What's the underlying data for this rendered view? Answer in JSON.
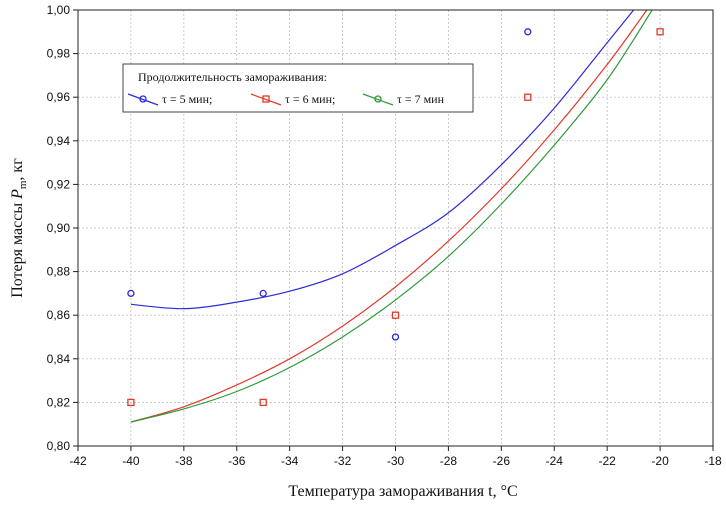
{
  "chart_data": {
    "type": "scatter",
    "xlabel": "Температура замораживания  t, °C",
    "ylabel_main": "Потеря массы ",
    "ylabel_var": "P",
    "ylabel_sub": "m",
    "ylabel_unit": ", кг",
    "xlim": [
      -42,
      -18
    ],
    "ylim": [
      0.8,
      1.0
    ],
    "xticks": [
      -42,
      -40,
      -38,
      -36,
      -34,
      -32,
      -30,
      -28,
      -26,
      -24,
      -22,
      -20,
      -18
    ],
    "yticks": [
      0.8,
      0.82,
      0.84,
      0.86,
      0.88,
      0.9,
      0.92,
      0.94,
      0.96,
      0.98,
      1.0
    ],
    "xtick_labels": [
      "-42",
      "-40",
      "-38",
      "-36",
      "-34",
      "-32",
      "-30",
      "-28",
      "-26",
      "-24",
      "-22",
      "-20",
      "-18"
    ],
    "ytick_labels": [
      "0,80",
      "0,82",
      "0,84",
      "0,86",
      "0,88",
      "0,90",
      "0,92",
      "0,94",
      "0,96",
      "0,98",
      "1,00"
    ],
    "grid": true,
    "legend": {
      "title": "Продолжительность замораживания:",
      "placement": "top-left"
    },
    "series": [
      {
        "name": "τ = 5 мин;",
        "color": "#2b2bd9",
        "marker": "circle",
        "points": [
          [
            -40,
            0.87
          ],
          [
            -35,
            0.87
          ],
          [
            -30,
            0.85
          ],
          [
            -25,
            0.99
          ]
        ],
        "fit_curve": [
          [
            -40,
            0.865
          ],
          [
            -38,
            0.863
          ],
          [
            -36,
            0.866
          ],
          [
            -34,
            0.871
          ],
          [
            -32,
            0.879
          ],
          [
            -30,
            0.892
          ],
          [
            -28,
            0.907
          ],
          [
            -26,
            0.929
          ],
          [
            -24,
            0.955
          ],
          [
            -22,
            0.985
          ],
          [
            -21,
            1.0
          ]
        ]
      },
      {
        "name": "τ = 6 мин;",
        "color": "#e03a2b",
        "marker": "square",
        "points": [
          [
            -40,
            0.82
          ],
          [
            -35,
            0.82
          ],
          [
            -30,
            0.86
          ],
          [
            -25,
            0.96
          ],
          [
            -20,
            0.99
          ]
        ],
        "fit_curve": [
          [
            -40,
            0.811
          ],
          [
            -38,
            0.818
          ],
          [
            -36,
            0.828
          ],
          [
            -34,
            0.84
          ],
          [
            -32,
            0.855
          ],
          [
            -30,
            0.873
          ],
          [
            -28,
            0.894
          ],
          [
            -26,
            0.918
          ],
          [
            -24,
            0.945
          ],
          [
            -22,
            0.975
          ],
          [
            -20.5,
            1.0
          ]
        ]
      },
      {
        "name": "τ = 7 мин",
        "color": "#2e9a3a",
        "marker": "circle",
        "points": [],
        "fit_curve": [
          [
            -40,
            0.811
          ],
          [
            -38,
            0.817
          ],
          [
            -36,
            0.825
          ],
          [
            -34,
            0.836
          ],
          [
            -32,
            0.85
          ],
          [
            -30,
            0.867
          ],
          [
            -28,
            0.887
          ],
          [
            -26,
            0.911
          ],
          [
            -24,
            0.938
          ],
          [
            -22,
            0.968
          ],
          [
            -20.3,
            1.0
          ]
        ]
      }
    ]
  }
}
